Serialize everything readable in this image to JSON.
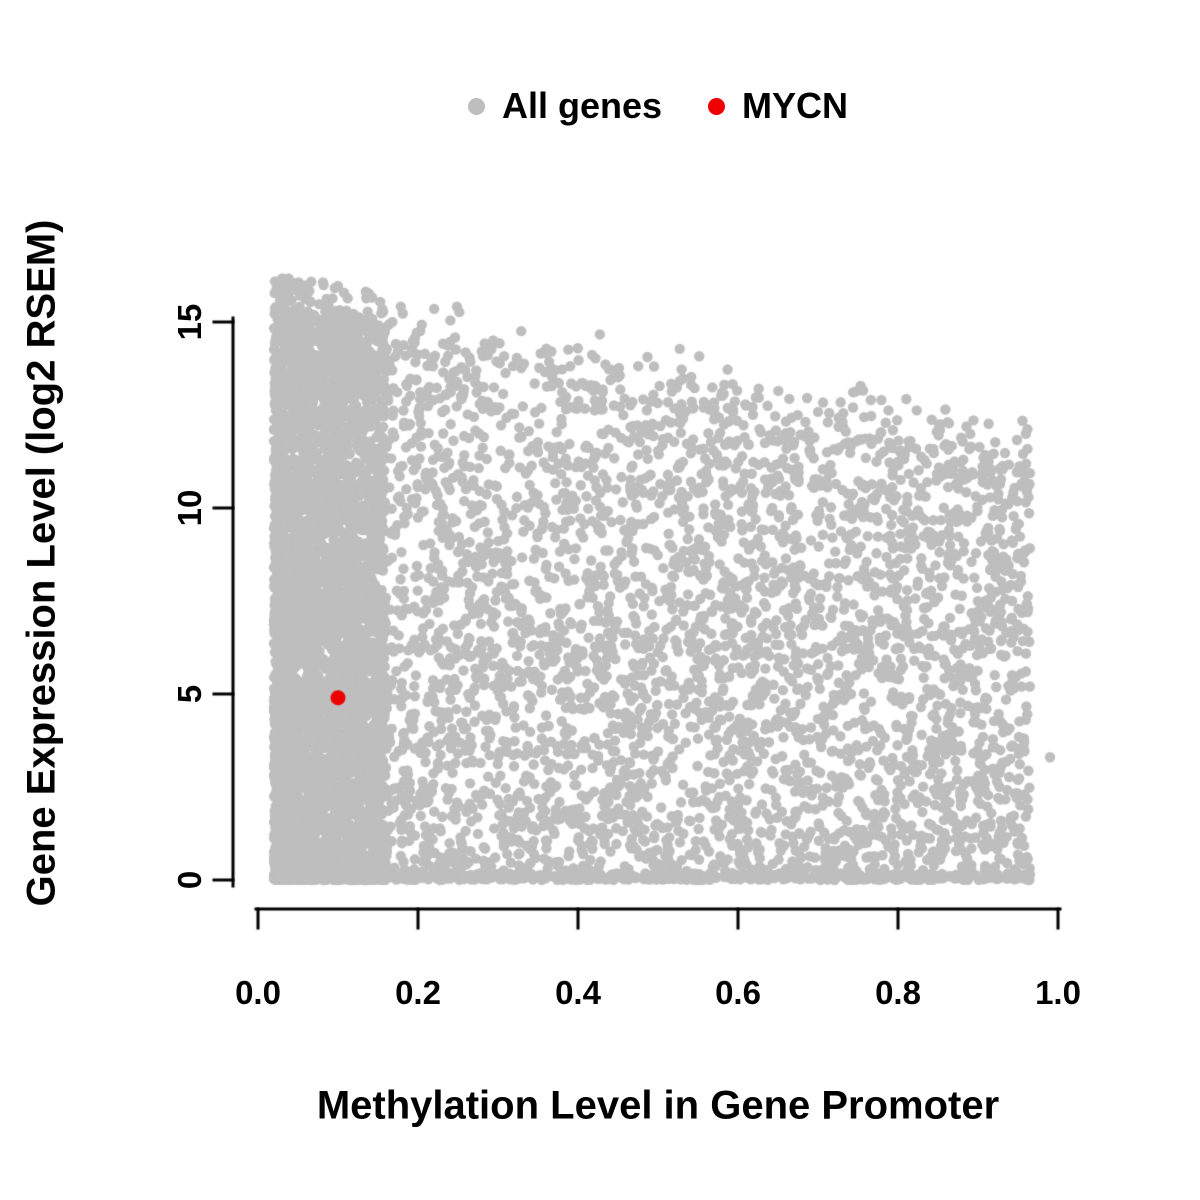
{
  "figure": {
    "background": "#ffffff",
    "text_color": "#000000"
  },
  "chart_data": {
    "type": "scatter",
    "title": "",
    "xlabel": "Methylation Level in Gene Promoter",
    "ylabel": "Gene Expression Level (log2 RSEM)",
    "xlim": [
      0,
      1
    ],
    "ylim": [
      0,
      17
    ],
    "grid": false,
    "legend_position": "top-center",
    "x_ticks": [
      "0.0",
      "0.2",
      "0.4",
      "0.6",
      "0.8",
      "1.0"
    ],
    "x_tick_values": [
      0,
      0.2,
      0.4,
      0.6,
      0.8,
      1.0
    ],
    "y_ticks": [
      "0",
      "5",
      "10",
      "15"
    ],
    "y_tick_values": [
      0,
      5,
      10,
      15
    ],
    "series": [
      {
        "name": "All genes",
        "color": "#bebebe",
        "role": "background-cloud",
        "description": "Dense cloud of thousands of genes. Promoter methylation spans ~0.02-0.97; expression spans 0-16.7 log2 RSEM. The densest vertical band sits at methylation < 0.15 covering the full expression range. The upper envelope of expression declines from ~16.7 at low methylation to ~12 at high methylation; a dense line of points lies along expression = 0 across all methylation levels.",
        "cloud_model": {
          "seed": 42,
          "n_points": 9000,
          "x_min": 0.02,
          "x_span": 0.945,
          "left_band_fraction": 0.45,
          "left_band_width": 0.14,
          "left_band_exponent": 1.3,
          "envelope_intercept": 16.6,
          "envelope_slope": -4.2,
          "envelope_noise": 1.6,
          "bottom_band_fraction": 0.1,
          "bottom_band_max": 0.18,
          "body_exponent": 1.15,
          "y_max": 16.8
        },
        "extra_points": [
          [
            0.99,
            3.3
          ],
          [
            0.93,
            1.4
          ]
        ]
      },
      {
        "name": "MYCN",
        "color": "#ee0000",
        "role": "highlighted-gene",
        "points": [
          [
            0.1,
            4.9
          ]
        ]
      }
    ]
  }
}
